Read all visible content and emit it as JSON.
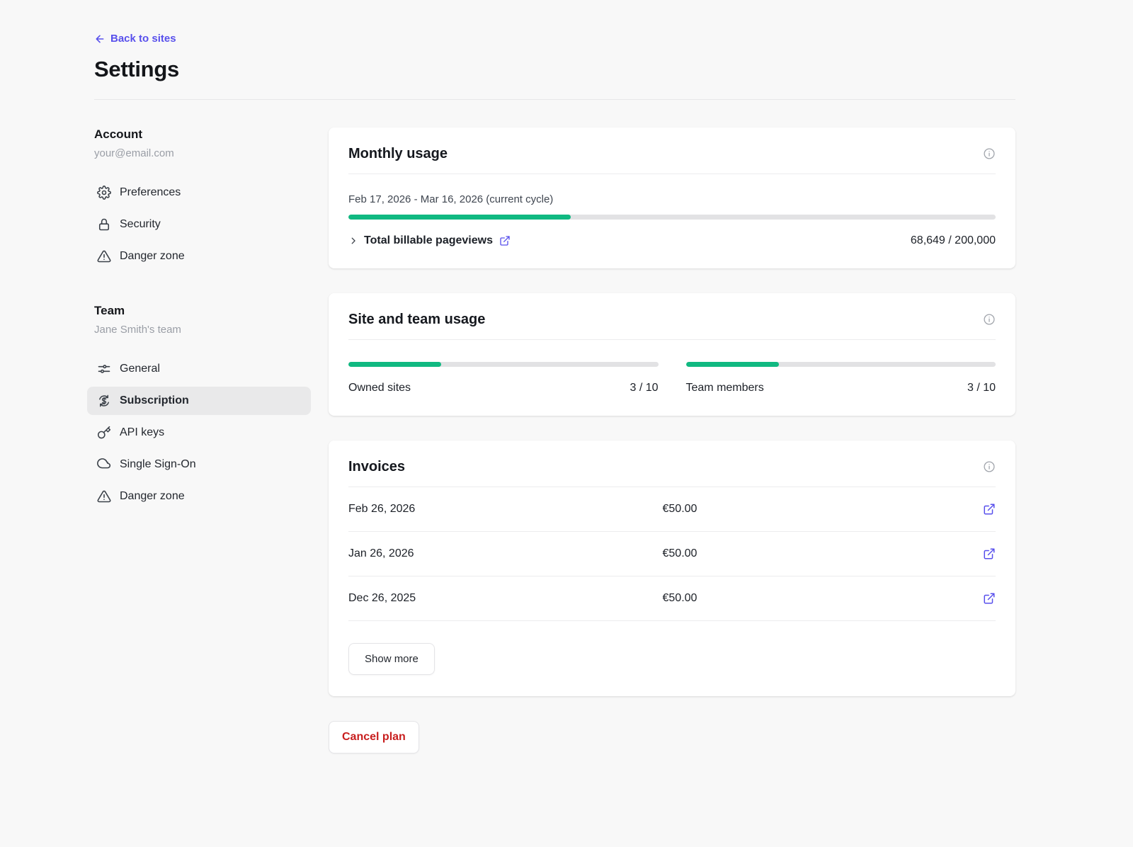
{
  "header": {
    "back_label": "Back to sites",
    "title": "Settings"
  },
  "sidebar": {
    "account": {
      "heading": "Account",
      "subheading": "your@email.com",
      "items": [
        {
          "label": "Preferences",
          "icon": "gear-icon"
        },
        {
          "label": "Security",
          "icon": "lock-icon"
        },
        {
          "label": "Danger zone",
          "icon": "warning-triangle-icon"
        }
      ]
    },
    "team": {
      "heading": "Team",
      "subheading": "Jane Smith's team",
      "items": [
        {
          "label": "General",
          "icon": "sliders-icon",
          "selected": false
        },
        {
          "label": "Subscription",
          "icon": "dollar-cycle-icon",
          "selected": true
        },
        {
          "label": "API keys",
          "icon": "key-icon",
          "selected": false
        },
        {
          "label": "Single Sign-On",
          "icon": "cloud-icon",
          "selected": false
        },
        {
          "label": "Danger zone",
          "icon": "warning-triangle-icon",
          "selected": false
        }
      ]
    }
  },
  "monthly_usage": {
    "title": "Monthly usage",
    "cycle_label": "Feb 17, 2026 - Mar 16, 2026 (current cycle)",
    "progress_percent": 34.3,
    "metric_label": "Total billable pageviews",
    "metric_value": "68,649 / 200,000"
  },
  "site_team_usage": {
    "title": "Site and team usage",
    "meters": [
      {
        "label": "Owned sites",
        "value": "3 / 10",
        "percent": 30
      },
      {
        "label": "Team members",
        "value": "3 / 10",
        "percent": 30
      }
    ]
  },
  "invoices": {
    "title": "Invoices",
    "rows": [
      {
        "date": "Feb 26, 2026",
        "amount": "€50.00"
      },
      {
        "date": "Jan 26, 2026",
        "amount": "€50.00"
      },
      {
        "date": "Dec 26, 2025",
        "amount": "€50.00"
      }
    ],
    "show_more_label": "Show more"
  },
  "footer": {
    "cancel_plan_label": "Cancel plan"
  },
  "colors": {
    "progress_green": "#10b981",
    "link_indigo": "#5850ec",
    "danger_red": "#c81e1e"
  }
}
